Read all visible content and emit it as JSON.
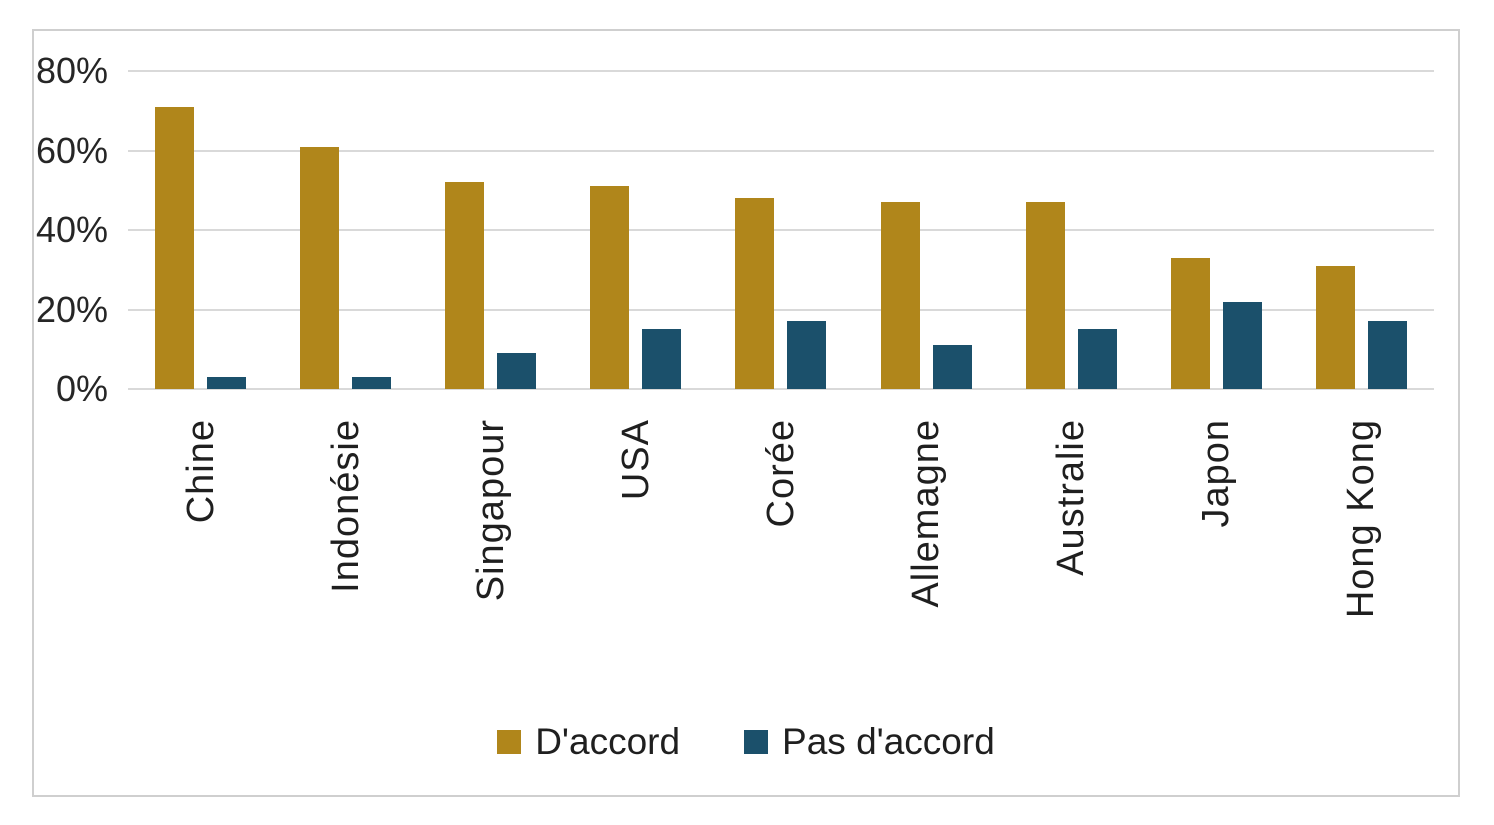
{
  "chart_data": {
    "type": "bar",
    "categories": [
      "Chine",
      "Indonésie",
      "Singapour",
      "USA",
      "Corée",
      "Allemagne",
      "Australie",
      "Japon",
      "Hong Kong"
    ],
    "series": [
      {
        "name": "D'accord",
        "color": "#B0861B",
        "values": [
          71,
          61,
          52,
          51,
          48,
          47,
          47,
          33,
          31
        ]
      },
      {
        "name": "Pas d'accord",
        "color": "#1B506B",
        "values": [
          3,
          3,
          9,
          15,
          17,
          11,
          15,
          22,
          17
        ]
      }
    ],
    "ylim": [
      0,
      80
    ],
    "y_ticks": [
      0,
      20,
      40,
      60,
      80
    ],
    "y_tick_suffix": "%",
    "grid": true,
    "legend_position": "bottom"
  },
  "colors": {
    "grid": "#D9D9D9",
    "frame_border": "#CFCFCF",
    "text": "#1F1F1F",
    "background": "#FFFFFF"
  }
}
